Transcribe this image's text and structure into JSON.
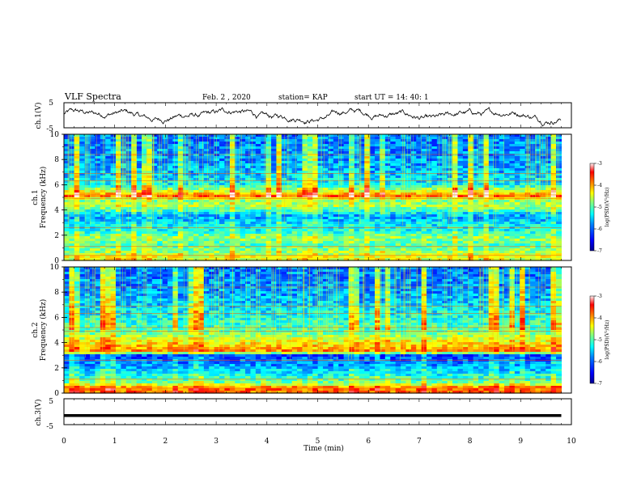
{
  "header": {
    "title": "VLF Spectra",
    "date": "Feb. 2  , 2020",
    "station": "station= KAP",
    "start": "start  UT  =   14: 40: 1"
  },
  "colors": {
    "colormap": [
      "#000090",
      "#0000ff",
      "#0080ff",
      "#00ffff",
      "#80ff80",
      "#ffff00",
      "#ff8000",
      "#ff0000",
      "#fff0f0"
    ],
    "trace": "#000000",
    "axis": "#000000"
  },
  "chart_data": [
    {
      "type": "line",
      "name": "ch.1 waveform",
      "ylabel": "ch.1(V)",
      "ylim": [
        -5,
        5
      ],
      "yticks": [
        "5",
        "-5"
      ],
      "xlim": [
        0,
        9.8
      ],
      "level_approx": 0
    },
    {
      "type": "heatmap",
      "ylabel_top": "ch.1",
      "ylabel": "Frequency  (kHz)",
      "ylim": [
        0,
        10
      ],
      "yticks": [
        "0",
        "2",
        "4",
        "6",
        "8",
        "10"
      ],
      "xlim": [
        0,
        9.8
      ],
      "colorbar": {
        "label": "log(PSD)(V²/Hz)",
        "range": [
          -7,
          -3
        ],
        "ticks": [
          "-3",
          "-4",
          "-5",
          "-6",
          "-7"
        ]
      },
      "band_profile_log_psd": [
        {
          "f": 0.3,
          "v": -4.6
        },
        {
          "f": 0.7,
          "v": -4.9
        },
        {
          "f": 1.2,
          "v": -5.2
        },
        {
          "f": 1.8,
          "v": -4.9
        },
        {
          "f": 2.3,
          "v": -5.4
        },
        {
          "f": 3.0,
          "v": -5.6
        },
        {
          "f": 3.5,
          "v": -5.9
        },
        {
          "f": 4.3,
          "v": -4.8
        },
        {
          "f": 4.8,
          "v": -5.0
        },
        {
          "f": 5.1,
          "v": -3.9
        },
        {
          "f": 6.0,
          "v": -5.5
        },
        {
          "f": 7.0,
          "v": -5.8
        },
        {
          "f": 8.0,
          "v": -5.9
        },
        {
          "f": 9.5,
          "v": -6.0
        }
      ]
    },
    {
      "type": "heatmap",
      "ylabel_top": "ch.2",
      "ylabel": "Frequency  (kHz)",
      "ylim": [
        0,
        10
      ],
      "yticks": [
        "0",
        "2",
        "4",
        "6",
        "8",
        "10"
      ],
      "xlim": [
        0,
        9.8
      ],
      "colorbar": {
        "label": "log(PSD)(V²/Hz)",
        "range": [
          -7,
          -3
        ],
        "ticks": [
          "-3",
          "-4",
          "-5",
          "-6",
          "-7"
        ]
      },
      "band_profile_log_psd": [
        {
          "f": 0.4,
          "v": -3.9
        },
        {
          "f": 0.8,
          "v": -5.0
        },
        {
          "f": 1.5,
          "v": -5.5
        },
        {
          "f": 2.2,
          "v": -5.9
        },
        {
          "f": 3.0,
          "v": -6.2
        },
        {
          "f": 3.3,
          "v": -4.0
        },
        {
          "f": 4.2,
          "v": -4.6
        },
        {
          "f": 5.0,
          "v": -5.2
        },
        {
          "f": 6.0,
          "v": -5.4
        },
        {
          "f": 7.0,
          "v": -5.7
        },
        {
          "f": 8.0,
          "v": -5.9
        },
        {
          "f": 9.5,
          "v": -6.0
        }
      ]
    },
    {
      "type": "line",
      "name": "ch.3 level",
      "ylabel": "ch.3(V)",
      "ylim": [
        -5,
        5
      ],
      "yticks": [
        "5",
        "-5"
      ],
      "xlim": [
        0,
        9.8
      ],
      "level": -1.5
    }
  ],
  "xaxis": {
    "label": "Time  (min)",
    "ticks": [
      "0",
      "1",
      "2",
      "3",
      "4",
      "5",
      "6",
      "7",
      "8",
      "9",
      "10"
    ],
    "range": [
      0,
      10
    ]
  }
}
